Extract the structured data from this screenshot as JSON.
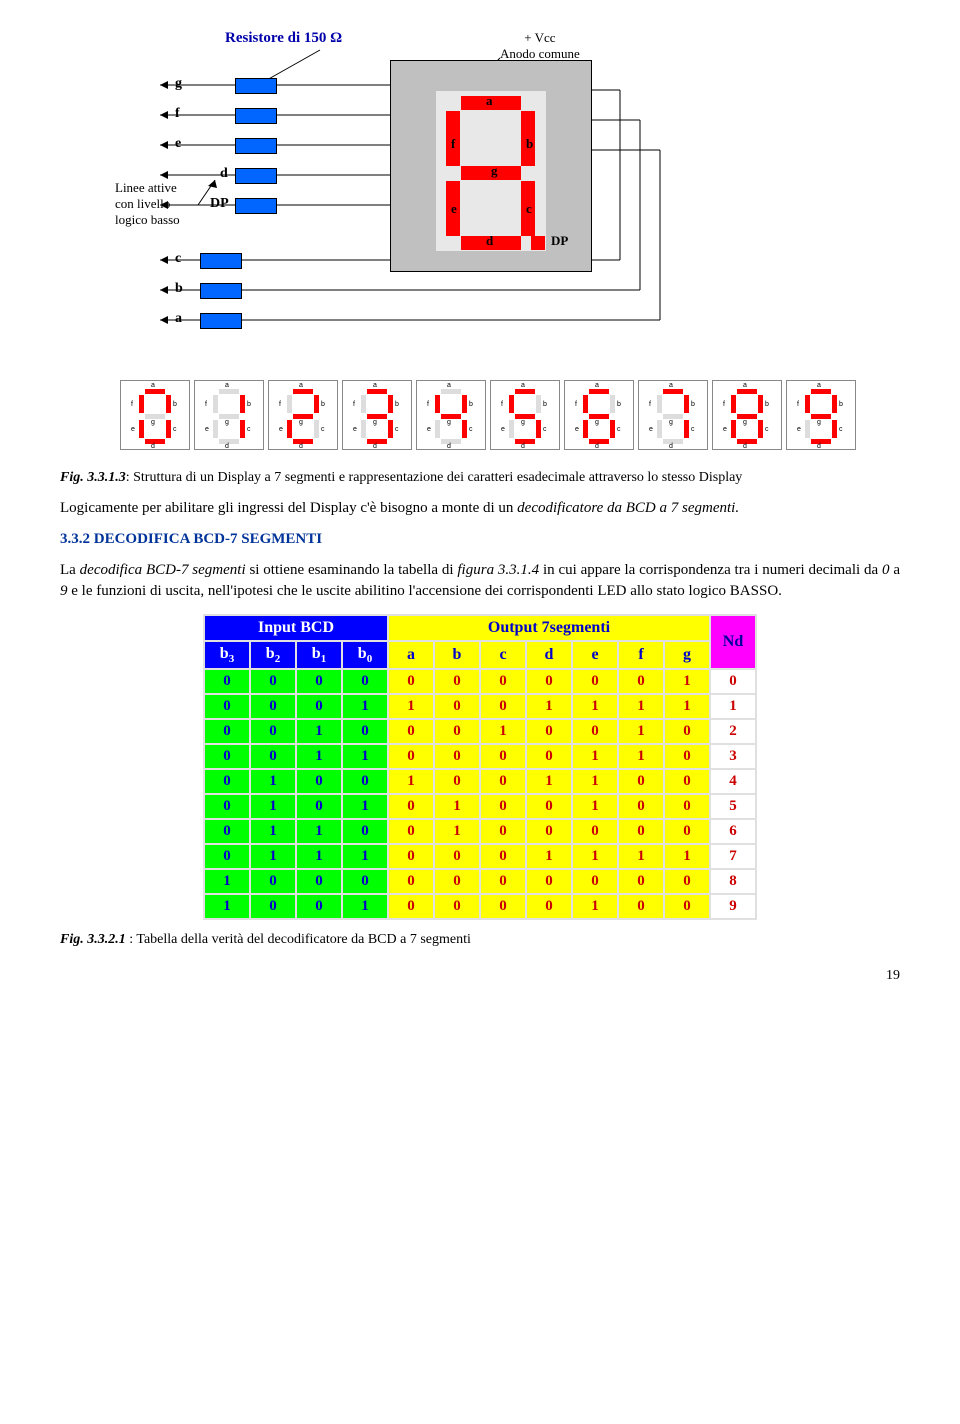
{
  "labels": {
    "resistor": "Resistore di 150 Ω",
    "vcc1": "+ Vcc",
    "vcc2": "Anodo comune",
    "linee1": "Linee attive",
    "linee2": "con livello",
    "linee3": "logico basso",
    "inputs": [
      "g",
      "f",
      "e",
      "d",
      "DP",
      "c",
      "b",
      "a"
    ],
    "segLabels": {
      "a": "a",
      "b": "b",
      "c": "c",
      "d": "d",
      "e": "e",
      "f": "f",
      "g": "g",
      "dp": "DP"
    }
  },
  "miniDigits": [
    {
      "a": 1,
      "b": 1,
      "c": 1,
      "d": 1,
      "e": 1,
      "f": 1,
      "g": 0
    },
    {
      "a": 0,
      "b": 1,
      "c": 1,
      "d": 0,
      "e": 0,
      "f": 0,
      "g": 0
    },
    {
      "a": 1,
      "b": 1,
      "c": 0,
      "d": 1,
      "e": 1,
      "f": 0,
      "g": 1
    },
    {
      "a": 1,
      "b": 1,
      "c": 1,
      "d": 1,
      "e": 0,
      "f": 0,
      "g": 1
    },
    {
      "a": 0,
      "b": 1,
      "c": 1,
      "d": 0,
      "e": 0,
      "f": 1,
      "g": 1
    },
    {
      "a": 1,
      "b": 0,
      "c": 1,
      "d": 1,
      "e": 0,
      "f": 1,
      "g": 1
    },
    {
      "a": 1,
      "b": 0,
      "c": 1,
      "d": 1,
      "e": 1,
      "f": 1,
      "g": 1
    },
    {
      "a": 1,
      "b": 1,
      "c": 1,
      "d": 0,
      "e": 0,
      "f": 0,
      "g": 0
    },
    {
      "a": 1,
      "b": 1,
      "c": 1,
      "d": 1,
      "e": 1,
      "f": 1,
      "g": 1
    },
    {
      "a": 1,
      "b": 1,
      "c": 1,
      "d": 1,
      "e": 0,
      "f": 1,
      "g": 1
    }
  ],
  "figCaption1Bold": "Fig. 3.3.1.3",
  "figCaption1": ": Struttura di un Display a 7 segmenti e rappresentazione dei caratteri esadecimale attraverso lo stesso Display",
  "para1a": "Logicamente per abilitare gli ingressi del Display c'è bisogno a monte di un ",
  "para1b": "decodificatore da BCD a 7 segmenti.",
  "sectionNum": "3.3.2 ",
  "sectionTitle": "DECODIFICA BCD-7 SEGMENTI",
  "para2a": "La ",
  "para2b": "decodifica BCD-7 segmenti",
  "para2c": " si ottiene esaminando la tabella di ",
  "para2d": "figura 3.3.1.4",
  "para2e": " in cui appare la corrispondenza tra i numeri decimali da ",
  "para2f": "0",
  "para2g": " a ",
  "para2h": "9",
  "para2i": " e le funzioni di uscita, nell'ipotesi che le uscite abilitino l'accensione dei corrispondenti LED allo stato logico BASSO.",
  "table": {
    "inputHeader": "Input BCD",
    "outputHeader": "Output 7segmenti",
    "ndHeader": "Nd",
    "inputCols": [
      "b3",
      "b2",
      "b1",
      "b0"
    ],
    "outputCols": [
      "a",
      "b",
      "c",
      "d",
      "e",
      "f",
      "g"
    ],
    "rows": [
      {
        "in": [
          0,
          0,
          0,
          0
        ],
        "out": [
          0,
          0,
          0,
          0,
          0,
          0,
          1
        ],
        "nd": 0
      },
      {
        "in": [
          0,
          0,
          0,
          1
        ],
        "out": [
          1,
          0,
          0,
          1,
          1,
          1,
          1
        ],
        "nd": 1
      },
      {
        "in": [
          0,
          0,
          1,
          0
        ],
        "out": [
          0,
          0,
          1,
          0,
          0,
          1,
          0
        ],
        "nd": 2
      },
      {
        "in": [
          0,
          0,
          1,
          1
        ],
        "out": [
          0,
          0,
          0,
          0,
          1,
          1,
          0
        ],
        "nd": 3
      },
      {
        "in": [
          0,
          1,
          0,
          0
        ],
        "out": [
          1,
          0,
          0,
          1,
          1,
          0,
          0
        ],
        "nd": 4
      },
      {
        "in": [
          0,
          1,
          0,
          1
        ],
        "out": [
          0,
          1,
          0,
          0,
          1,
          0,
          0
        ],
        "nd": 5
      },
      {
        "in": [
          0,
          1,
          1,
          0
        ],
        "out": [
          0,
          1,
          0,
          0,
          0,
          0,
          0
        ],
        "nd": 6
      },
      {
        "in": [
          0,
          1,
          1,
          1
        ],
        "out": [
          0,
          0,
          0,
          1,
          1,
          1,
          1
        ],
        "nd": 7
      },
      {
        "in": [
          1,
          0,
          0,
          0
        ],
        "out": [
          0,
          0,
          0,
          0,
          0,
          0,
          0
        ],
        "nd": 8
      },
      {
        "in": [
          1,
          0,
          0,
          1
        ],
        "out": [
          0,
          0,
          0,
          0,
          1,
          0,
          0
        ],
        "nd": 9
      }
    ]
  },
  "figCaption2Bold": "Fig. 3.3.2.1",
  "figCaption2": " : Tabella della verità del decodificatore da BCD  a 7 segmenti",
  "pageNum": "19"
}
